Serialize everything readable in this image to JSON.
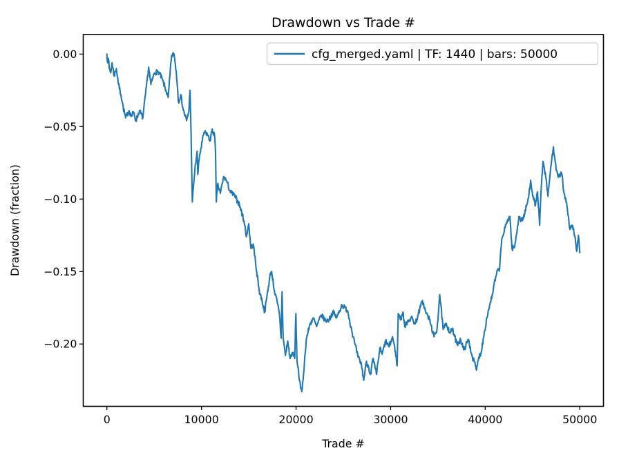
{
  "chart_data": {
    "type": "line",
    "title": "Drawdown vs Trade #",
    "xlabel": "Trade #",
    "ylabel": "Drawdown (fraction)",
    "grid": false,
    "background_color": "#ffffff",
    "axes_edge_color": "#000000",
    "legend": {
      "position": "upper right",
      "edge_color": "#cccccc",
      "entries": [
        {
          "label": "cfg_merged.yaml | TF: 1440 | bars: 50000",
          "color": "#1f77b4"
        }
      ]
    },
    "xlim": [
      -2500,
      52500
    ],
    "ylim": [
      -0.243,
      0.0135
    ],
    "x_ticks": {
      "values": [
        0,
        10000,
        20000,
        30000,
        40000,
        50000
      ],
      "labels": [
        "0",
        "10000",
        "20000",
        "30000",
        "40000",
        "50000"
      ]
    },
    "y_ticks": {
      "values": [
        0.0,
        -0.05,
        -0.1,
        -0.15,
        -0.2
      ],
      "labels": [
        "0.00",
        "−0.05",
        "−0.10",
        "−0.15",
        "−0.20"
      ]
    },
    "series": [
      {
        "name": "cfg_merged.yaml | TF: 1440 | bars: 50000",
        "color": "#1f77b4",
        "line_width": 2.1,
        "points": [
          [
            0,
            0.0
          ],
          [
            80,
            -0.006
          ],
          [
            150,
            -0.003
          ],
          [
            250,
            -0.01
          ],
          [
            400,
            -0.013
          ],
          [
            550,
            -0.006
          ],
          [
            760,
            -0.015
          ],
          [
            1000,
            -0.01
          ],
          [
            1240,
            -0.021
          ],
          [
            1490,
            -0.028
          ],
          [
            1730,
            -0.037
          ],
          [
            1980,
            -0.044
          ],
          [
            2340,
            -0.039
          ],
          [
            2600,
            -0.043
          ],
          [
            2830,
            -0.04
          ],
          [
            3070,
            -0.046
          ],
          [
            3440,
            -0.039
          ],
          [
            3800,
            -0.044
          ],
          [
            4170,
            -0.023
          ],
          [
            4420,
            -0.009
          ],
          [
            4650,
            -0.021
          ],
          [
            5020,
            -0.013
          ],
          [
            5380,
            -0.012
          ],
          [
            5620,
            -0.014
          ],
          [
            5990,
            -0.02
          ],
          [
            6240,
            -0.025
          ],
          [
            6480,
            -0.03
          ],
          [
            6840,
            -0.001
          ],
          [
            7100,
            0.0
          ],
          [
            7330,
            -0.012
          ],
          [
            7450,
            -0.022
          ],
          [
            7570,
            -0.033
          ],
          [
            7810,
            -0.028
          ],
          [
            8060,
            -0.038
          ],
          [
            8420,
            -0.046
          ],
          [
            8650,
            -0.04
          ],
          [
            8790,
            -0.025
          ],
          [
            8900,
            -0.055
          ],
          [
            9030,
            -0.102
          ],
          [
            9300,
            -0.08
          ],
          [
            9540,
            -0.067
          ],
          [
            9610,
            -0.083
          ],
          [
            9800,
            -0.07
          ],
          [
            10270,
            -0.054
          ],
          [
            10610,
            -0.055
          ],
          [
            10900,
            -0.06
          ],
          [
            11100,
            -0.053
          ],
          [
            11370,
            -0.055
          ],
          [
            11490,
            -0.068
          ],
          [
            11565,
            -0.102
          ],
          [
            11700,
            -0.09
          ],
          [
            12000,
            -0.096
          ],
          [
            12290,
            -0.086
          ],
          [
            12435,
            -0.085
          ],
          [
            12680,
            -0.088
          ],
          [
            13045,
            -0.095
          ],
          [
            13530,
            -0.098
          ],
          [
            14015,
            -0.104
          ],
          [
            14500,
            -0.115
          ],
          [
            14745,
            -0.126
          ],
          [
            14990,
            -0.117
          ],
          [
            15230,
            -0.134
          ],
          [
            15470,
            -0.131
          ],
          [
            15840,
            -0.15
          ],
          [
            16100,
            -0.163
          ],
          [
            16400,
            -0.17
          ],
          [
            16690,
            -0.178
          ],
          [
            16900,
            -0.168
          ],
          [
            17300,
            -0.151
          ],
          [
            17420,
            -0.15
          ],
          [
            17700,
            -0.163
          ],
          [
            18030,
            -0.172
          ],
          [
            18250,
            -0.18
          ],
          [
            18420,
            -0.196
          ],
          [
            18520,
            -0.164
          ],
          [
            18640,
            -0.196
          ],
          [
            18880,
            -0.208
          ],
          [
            19120,
            -0.198
          ],
          [
            19370,
            -0.21
          ],
          [
            19600,
            -0.206
          ],
          [
            19860,
            -0.21
          ],
          [
            19980,
            -0.179
          ],
          [
            20100,
            -0.212
          ],
          [
            20220,
            -0.216
          ],
          [
            20350,
            -0.225
          ],
          [
            20475,
            -0.23
          ],
          [
            20600,
            -0.233
          ],
          [
            20800,
            -0.22
          ],
          [
            21075,
            -0.197
          ],
          [
            21440,
            -0.187
          ],
          [
            21800,
            -0.182
          ],
          [
            22170,
            -0.188
          ],
          [
            22680,
            -0.18
          ],
          [
            23120,
            -0.184
          ],
          [
            23510,
            -0.183
          ],
          [
            23900,
            -0.178
          ],
          [
            24300,
            -0.182
          ],
          [
            24850,
            -0.173
          ],
          [
            25450,
            -0.177
          ],
          [
            25800,
            -0.188
          ],
          [
            26180,
            -0.199
          ],
          [
            26550,
            -0.209
          ],
          [
            26910,
            -0.214
          ],
          [
            27155,
            -0.225
          ],
          [
            27400,
            -0.213
          ],
          [
            27640,
            -0.215
          ],
          [
            27880,
            -0.221
          ],
          [
            28130,
            -0.21
          ],
          [
            28500,
            -0.221
          ],
          [
            28860,
            -0.203
          ],
          [
            29100,
            -0.207
          ],
          [
            29470,
            -0.198
          ],
          [
            29840,
            -0.202
          ],
          [
            30200,
            -0.195
          ],
          [
            30500,
            -0.205
          ],
          [
            30690,
            -0.215
          ],
          [
            30800,
            -0.179
          ],
          [
            31075,
            -0.183
          ],
          [
            31290,
            -0.178
          ],
          [
            31500,
            -0.188
          ],
          [
            31800,
            -0.184
          ],
          [
            32200,
            -0.182
          ],
          [
            32600,
            -0.186
          ],
          [
            32900,
            -0.18
          ],
          [
            33360,
            -0.17
          ],
          [
            33700,
            -0.178
          ],
          [
            34100,
            -0.183
          ],
          [
            34580,
            -0.195
          ],
          [
            34900,
            -0.19
          ],
          [
            35190,
            -0.166
          ],
          [
            35550,
            -0.19
          ],
          [
            35900,
            -0.186
          ],
          [
            36250,
            -0.192
          ],
          [
            36530,
            -0.19
          ],
          [
            37010,
            -0.2
          ],
          [
            37400,
            -0.197
          ],
          [
            37720,
            -0.204
          ],
          [
            38230,
            -0.197
          ],
          [
            38600,
            -0.208
          ],
          [
            38960,
            -0.215
          ],
          [
            39080,
            -0.218
          ],
          [
            39320,
            -0.209
          ],
          [
            39560,
            -0.206
          ],
          [
            39930,
            -0.191
          ],
          [
            40170,
            -0.182
          ],
          [
            40540,
            -0.171
          ],
          [
            40780,
            -0.166
          ],
          [
            40930,
            -0.159
          ],
          [
            41370,
            -0.148
          ],
          [
            41520,
            -0.148
          ],
          [
            41740,
            -0.128
          ],
          [
            41880,
            -0.125
          ],
          [
            42100,
            -0.12
          ],
          [
            42390,
            -0.114
          ],
          [
            42610,
            -0.112
          ],
          [
            42830,
            -0.134
          ],
          [
            43120,
            -0.133
          ],
          [
            43560,
            -0.112
          ],
          [
            43850,
            -0.115
          ],
          [
            44180,
            -0.11
          ],
          [
            44580,
            -0.099
          ],
          [
            44800,
            -0.087
          ],
          [
            45100,
            -0.1
          ],
          [
            45310,
            -0.104
          ],
          [
            45530,
            -0.095
          ],
          [
            45750,
            -0.118
          ],
          [
            45900,
            -0.095
          ],
          [
            46110,
            -0.074
          ],
          [
            46400,
            -0.085
          ],
          [
            46630,
            -0.098
          ],
          [
            46900,
            -0.08
          ],
          [
            47210,
            -0.064
          ],
          [
            47500,
            -0.08
          ],
          [
            47720,
            -0.085
          ],
          [
            48090,
            -0.082
          ],
          [
            48300,
            -0.095
          ],
          [
            48600,
            -0.102
          ],
          [
            48960,
            -0.121
          ],
          [
            49150,
            -0.118
          ],
          [
            49330,
            -0.12
          ],
          [
            49690,
            -0.136
          ],
          [
            49850,
            -0.125
          ],
          [
            50000,
            -0.137
          ]
        ],
        "noise_texture": {
          "amplitude": 0.0018,
          "step": 45,
          "seed": 7
        }
      }
    ]
  }
}
